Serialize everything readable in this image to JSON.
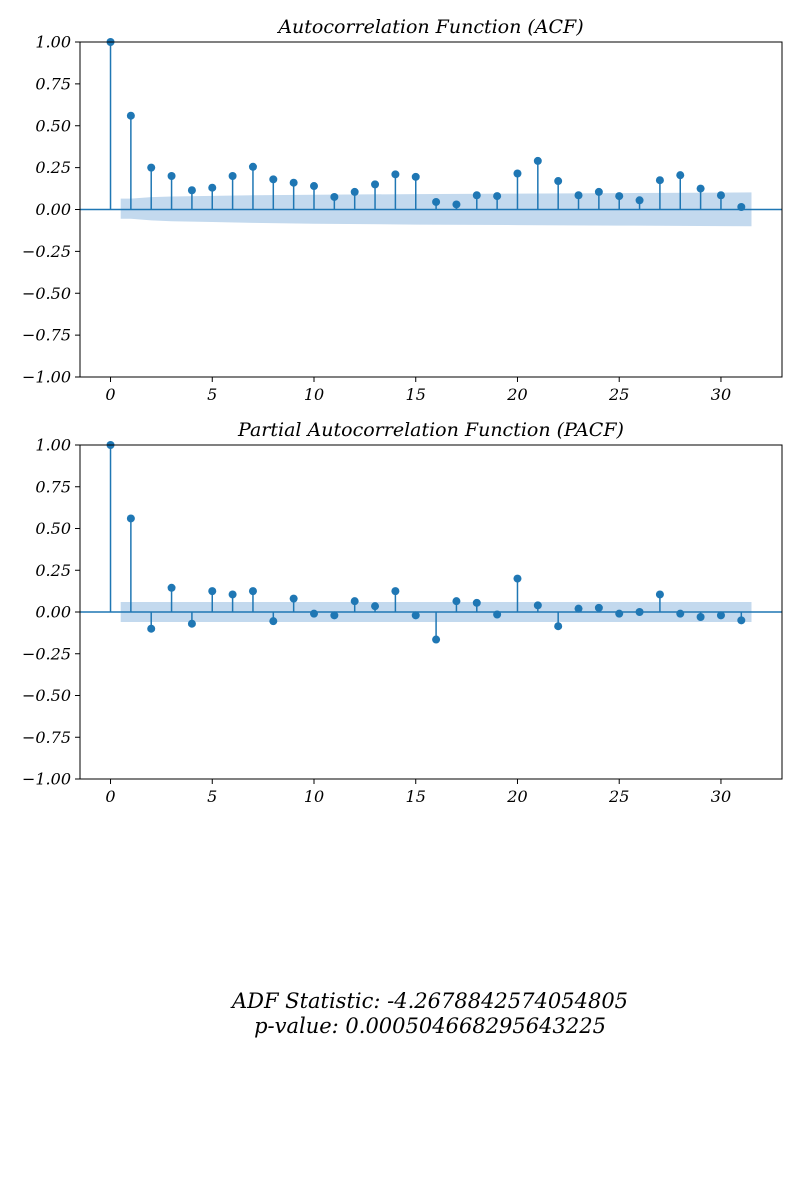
{
  "chart_data": [
    {
      "type": "stem",
      "title": "Autocorrelation Function (ACF)",
      "xlim": [
        -1.5,
        33
      ],
      "ylim": [
        -1.0,
        1.0
      ],
      "xticks": [
        0,
        5,
        10,
        15,
        20,
        25,
        30
      ],
      "xtick_labels": [
        "0",
        "5",
        "10",
        "15",
        "20",
        "25",
        "30"
      ],
      "yticks": [
        1.0,
        0.75,
        0.5,
        0.25,
        0.0,
        -0.25,
        -0.5,
        -0.75,
        -1.0
      ],
      "ytick_labels": [
        "1.00",
        "0.75",
        "0.50",
        "0.25",
        "0.00",
        "−0.25",
        "−0.50",
        "−0.75",
        "−1.00"
      ],
      "x": [
        0,
        1,
        2,
        3,
        4,
        5,
        6,
        7,
        8,
        9,
        10,
        11,
        12,
        13,
        14,
        15,
        16,
        17,
        18,
        19,
        20,
        21,
        22,
        23,
        24,
        25,
        26,
        27,
        28,
        29,
        30,
        31
      ],
      "values": [
        1.0,
        0.56,
        0.25,
        0.2,
        0.115,
        0.13,
        0.2,
        0.255,
        0.18,
        0.16,
        0.14,
        0.075,
        0.105,
        0.15,
        0.21,
        0.195,
        0.045,
        0.03,
        0.085,
        0.08,
        0.215,
        0.29,
        0.17,
        0.085,
        0.105,
        0.08,
        0.055,
        0.175,
        0.205,
        0.125,
        0.085,
        0.015
      ],
      "confidence_band": {
        "x": [
          0.5,
          1,
          2,
          3,
          5,
          7,
          10,
          15,
          20,
          25,
          30,
          31.5
        ],
        "upper": [
          0.065,
          0.065,
          0.074,
          0.078,
          0.081,
          0.085,
          0.088,
          0.092,
          0.095,
          0.098,
          0.101,
          0.102
        ],
        "lower": [
          -0.055,
          -0.055,
          -0.065,
          -0.07,
          -0.075,
          -0.08,
          -0.085,
          -0.09,
          -0.093,
          -0.096,
          -0.099,
          -0.1
        ]
      },
      "color": "#1f77b4",
      "band_color": "#c3d9ee"
    },
    {
      "type": "stem",
      "title": "Partial Autocorrelation Function (PACF)",
      "xlim": [
        -1.5,
        33
      ],
      "ylim": [
        -1.0,
        1.0
      ],
      "xticks": [
        0,
        5,
        10,
        15,
        20,
        25,
        30
      ],
      "xtick_labels": [
        "0",
        "5",
        "10",
        "15",
        "20",
        "25",
        "30"
      ],
      "yticks": [
        1.0,
        0.75,
        0.5,
        0.25,
        0.0,
        -0.25,
        -0.5,
        -0.75,
        -1.0
      ],
      "ytick_labels": [
        "1.00",
        "0.75",
        "0.50",
        "0.25",
        "0.00",
        "−0.25",
        "−0.50",
        "−0.75",
        "−1.00"
      ],
      "x": [
        0,
        1,
        2,
        3,
        4,
        5,
        6,
        7,
        8,
        9,
        10,
        11,
        12,
        13,
        14,
        15,
        16,
        17,
        18,
        19,
        20,
        21,
        22,
        23,
        24,
        25,
        26,
        27,
        28,
        29,
        30,
        31
      ],
      "values": [
        1.0,
        0.56,
        -0.1,
        0.145,
        -0.07,
        0.125,
        0.105,
        0.125,
        -0.055,
        0.08,
        -0.01,
        -0.02,
        0.065,
        0.035,
        0.125,
        -0.02,
        -0.165,
        0.065,
        0.055,
        -0.015,
        0.2,
        0.04,
        -0.085,
        0.02,
        0.025,
        -0.01,
        0.0,
        0.105,
        -0.01,
        -0.03,
        -0.02,
        -0.05
      ],
      "confidence_band": {
        "x": [
          0.5,
          31.5
        ],
        "upper": [
          0.06,
          0.06
        ],
        "lower": [
          -0.06,
          -0.06
        ]
      },
      "color": "#1f77b4",
      "band_color": "#c3d9ee"
    }
  ],
  "stats": {
    "adf_line": "ADF Statistic: -4.2678842574054805",
    "pvalue_line": "p-value: 0.000504668295643225"
  }
}
